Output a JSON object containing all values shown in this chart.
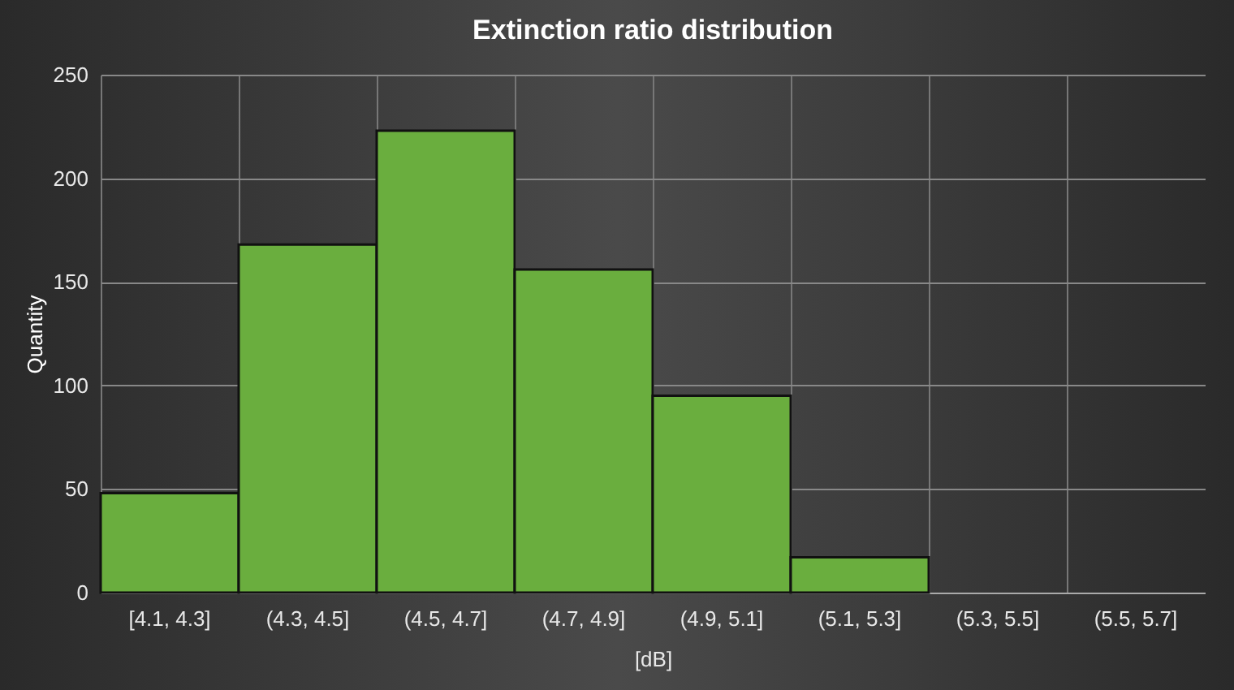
{
  "chart_data": {
    "type": "bar",
    "title": "Extinction ratio distribution",
    "xlabel": "[dB]",
    "ylabel": "Quantity",
    "categories": [
      "[4.1, 4.3]",
      "(4.3, 4.5]",
      "(4.5, 4.7]",
      "(4.7, 4.9]",
      "(4.9, 5.1]",
      "(5.1, 5.3]",
      "(5.3, 5.5]",
      "(5.5, 5.7]"
    ],
    "values": [
      48,
      168,
      223,
      156,
      95,
      17,
      0,
      0
    ],
    "color": "#6aae3e",
    "ylim": [
      0,
      250
    ],
    "yticks": [
      0,
      50,
      100,
      150,
      200,
      250
    ],
    "grid": true
  }
}
